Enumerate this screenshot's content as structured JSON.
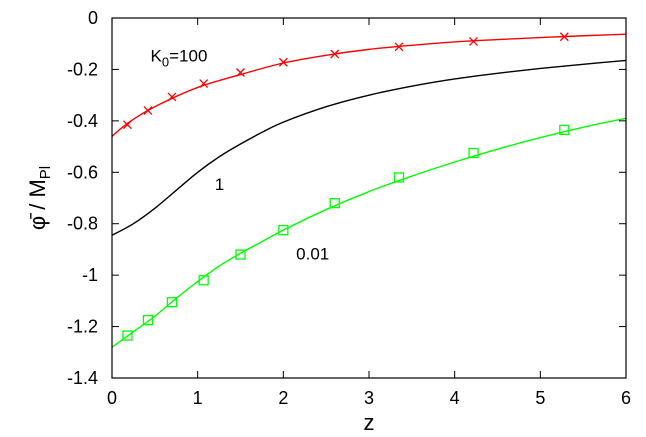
{
  "chart_data": {
    "type": "line",
    "title": "",
    "xlabel": "z",
    "ylabel_main": "φ̄ / M",
    "ylabel_sub": "Pl",
    "xlim": [
      0,
      6
    ],
    "ylim": [
      -1.4,
      0
    ],
    "grid": false,
    "legend": "none",
    "x_ticks": [
      0,
      1,
      2,
      3,
      4,
      5,
      6
    ],
    "x_tick_labels": [
      "0",
      "1",
      "2",
      "3",
      "4",
      "5",
      "6"
    ],
    "y_ticks": [
      0,
      -0.2,
      -0.4,
      -0.6,
      -0.8,
      -1,
      -1.2,
      -1.4
    ],
    "y_tick_labels": [
      "0",
      "-0.2",
      "-0.4",
      "-0.6",
      "-0.8",
      "-1",
      "-1.2",
      "-1.4"
    ],
    "series": [
      {
        "label_parts": [
          "K",
          "0",
          "=100"
        ],
        "color": "#ff0000",
        "marker": "x",
        "label_pos": [
          0.45,
          -0.145
        ],
        "x": [
          0,
          0.2,
          0.5,
          1,
          1.5,
          2,
          2.5,
          3,
          3.5,
          4,
          4.5,
          5,
          5.5,
          6
        ],
        "y": [
          -0.46,
          -0.405,
          -0.345,
          -0.27,
          -0.22,
          -0.175,
          -0.145,
          -0.122,
          -0.106,
          -0.093,
          -0.084,
          -0.076,
          -0.069,
          -0.063
        ],
        "marker_x": [
          0.18,
          0.42,
          0.7,
          1.07,
          1.5,
          2.0,
          2.6,
          3.35,
          4.22,
          5.28
        ],
        "marker_y": [
          -0.415,
          -0.36,
          -0.307,
          -0.255,
          -0.212,
          -0.172,
          -0.14,
          -0.112,
          -0.091,
          -0.073
        ]
      },
      {
        "label_parts": [
          "1"
        ],
        "color": "#000000",
        "marker": "none",
        "label_pos": [
          1.2,
          -0.645
        ],
        "x": [
          0,
          0.25,
          0.5,
          0.75,
          1,
          1.25,
          1.5,
          1.75,
          2,
          2.5,
          3,
          3.5,
          4,
          4.5,
          5,
          5.5,
          6
        ],
        "y": [
          -0.845,
          -0.8,
          -0.74,
          -0.67,
          -0.6,
          -0.54,
          -0.49,
          -0.445,
          -0.405,
          -0.345,
          -0.3,
          -0.265,
          -0.237,
          -0.215,
          -0.196,
          -0.18,
          -0.165
        ]
      },
      {
        "label_parts": [
          "0.01"
        ],
        "color": "#00ff00",
        "marker": "square",
        "label_pos": [
          2.15,
          -0.915
        ],
        "x": [
          0,
          0.25,
          0.5,
          0.75,
          1,
          1.25,
          1.5,
          1.75,
          2,
          2.5,
          3,
          3.5,
          4,
          4.5,
          5,
          5.5,
          6
        ],
        "y": [
          -1.28,
          -1.22,
          -1.16,
          -1.09,
          -1.025,
          -0.965,
          -0.915,
          -0.87,
          -0.825,
          -0.745,
          -0.675,
          -0.615,
          -0.56,
          -0.51,
          -0.465,
          -0.425,
          -0.39
        ],
        "marker_x": [
          0.18,
          0.42,
          0.7,
          1.07,
          1.5,
          2.0,
          2.6,
          3.35,
          4.22,
          5.28
        ],
        "marker_y": [
          -1.235,
          -1.175,
          -1.105,
          -1.02,
          -0.92,
          -0.825,
          -0.72,
          -0.62,
          -0.525,
          -0.435
        ]
      }
    ]
  }
}
